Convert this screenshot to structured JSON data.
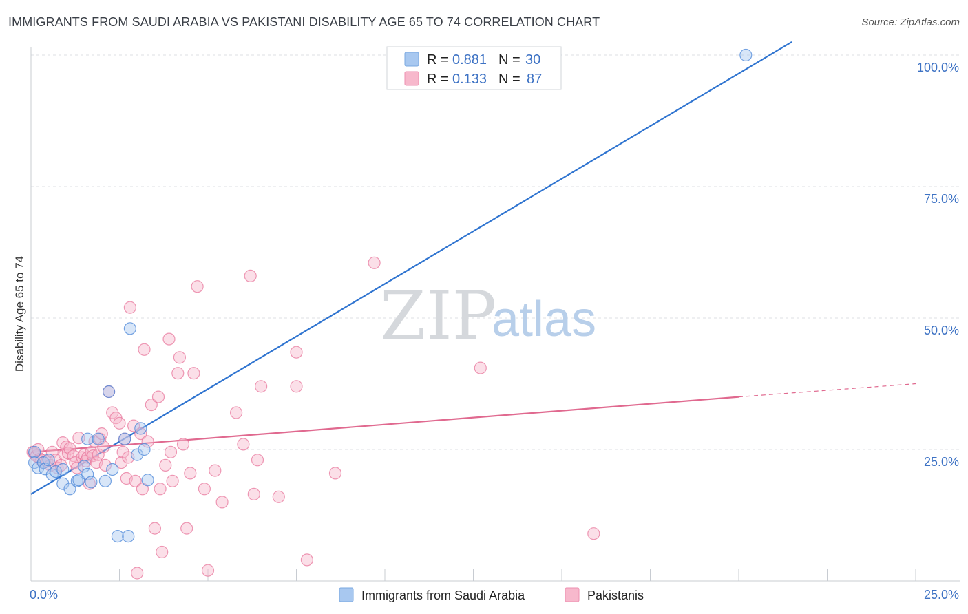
{
  "title": "IMMIGRANTS FROM SAUDI ARABIA VS PAKISTANI DISABILITY AGE 65 TO 74 CORRELATION CHART",
  "source": "Source: ZipAtlas.com",
  "watermark": {
    "zip": "ZIP",
    "atlas": "atlas"
  },
  "legend": {
    "r_label": "R =",
    "n_label": "N =",
    "series": [
      {
        "r": "0.881",
        "n": "30",
        "color": "#a8c8f0"
      },
      {
        "r": "0.133",
        "n": "87",
        "color": "#f7b8cc"
      }
    ]
  },
  "bottom_legend": [
    {
      "label": "Immigrants from Saudi Arabia",
      "color": "#a8c8f0"
    },
    {
      "label": "Pakistanis",
      "color": "#f7b8cc"
    }
  ],
  "chart_data": {
    "type": "scatter",
    "title": "IMMIGRANTS FROM SAUDI ARABIA VS PAKISTANI DISABILITY AGE 65 TO 74 CORRELATION CHART",
    "xlabel": "",
    "ylabel": "Disability Age 65 to 74",
    "xlim": [
      0,
      25
    ],
    "ylim": [
      0,
      100
    ],
    "x_tick_labels": [
      "0.0%",
      "25.0%"
    ],
    "y_tick_labels": [
      "25.0%",
      "50.0%",
      "75.0%",
      "100.0%"
    ],
    "y_ticks": [
      25,
      50,
      75,
      100
    ],
    "grid": true,
    "legend_position": "top-center",
    "series": [
      {
        "name": "Immigrants from Saudi Arabia",
        "color": "#4a86d8",
        "fill": "#a8c8f0",
        "line_color": "#2f74d0",
        "trend": {
          "x0": 0,
          "y0": 16.5,
          "x1": 21.5,
          "y1": 102.5,
          "dashed_to": null
        },
        "points": [
          [
            0.1,
            24.5
          ],
          [
            0.1,
            22.5
          ],
          [
            0.2,
            21.5
          ],
          [
            0.35,
            22.5
          ],
          [
            0.4,
            21.3
          ],
          [
            0.5,
            23.0
          ],
          [
            0.6,
            20.2
          ],
          [
            0.7,
            20.8
          ],
          [
            0.9,
            21.2
          ],
          [
            0.9,
            18.5
          ],
          [
            1.1,
            17.5
          ],
          [
            1.3,
            19.0
          ],
          [
            1.35,
            19.2
          ],
          [
            1.5,
            21.8
          ],
          [
            1.6,
            20.3
          ],
          [
            1.6,
            27.0
          ],
          [
            1.7,
            18.8
          ],
          [
            1.9,
            27.0
          ],
          [
            2.1,
            19.0
          ],
          [
            2.2,
            36.0
          ],
          [
            2.3,
            21.2
          ],
          [
            2.45,
            8.5
          ],
          [
            2.65,
            27.0
          ],
          [
            2.75,
            8.5
          ],
          [
            2.8,
            48.0
          ],
          [
            3.0,
            24.0
          ],
          [
            3.1,
            29.0
          ],
          [
            3.2,
            25.0
          ],
          [
            3.3,
            19.2
          ],
          [
            20.2,
            100.0
          ]
        ]
      },
      {
        "name": "Pakistanis",
        "color": "#e8779c",
        "fill": "#f7b8cc",
        "line_color": "#e0698f",
        "trend": {
          "x0": 0,
          "y0": 24.5,
          "x1": 20.0,
          "y1": 35.0,
          "dashed_to": [
            25.0,
            37.5
          ]
        },
        "points": [
          [
            0.05,
            24.5
          ],
          [
            0.1,
            24.2
          ],
          [
            0.15,
            23.8
          ],
          [
            0.25,
            23.2
          ],
          [
            0.3,
            23.0
          ],
          [
            0.35,
            22.5
          ],
          [
            0.45,
            22.8
          ],
          [
            0.55,
            22.0
          ],
          [
            0.6,
            24.5
          ],
          [
            0.7,
            23.0
          ],
          [
            0.75,
            21.5
          ],
          [
            0.85,
            22.0
          ],
          [
            0.9,
            26.3
          ],
          [
            0.95,
            24.0
          ],
          [
            1.0,
            25.5
          ],
          [
            1.05,
            24.3
          ],
          [
            1.1,
            25.2
          ],
          [
            1.2,
            23.8
          ],
          [
            1.25,
            22.5
          ],
          [
            1.3,
            21.5
          ],
          [
            1.35,
            27.2
          ],
          [
            1.45,
            23.5
          ],
          [
            1.5,
            24.0
          ],
          [
            1.55,
            22.8
          ],
          [
            1.6,
            23.5
          ],
          [
            1.65,
            18.5
          ],
          [
            1.7,
            24.5
          ],
          [
            1.75,
            23.8
          ],
          [
            1.8,
            26.5
          ],
          [
            1.85,
            22.5
          ],
          [
            1.9,
            24.0
          ],
          [
            1.95,
            27.0
          ],
          [
            2.0,
            28.0
          ],
          [
            2.05,
            25.5
          ],
          [
            2.1,
            22.0
          ],
          [
            2.2,
            36.0
          ],
          [
            2.3,
            32.0
          ],
          [
            2.4,
            31.0
          ],
          [
            2.5,
            30.0
          ],
          [
            2.55,
            22.5
          ],
          [
            2.6,
            24.5
          ],
          [
            2.65,
            27.0
          ],
          [
            2.7,
            19.5
          ],
          [
            2.75,
            23.5
          ],
          [
            2.8,
            52.0
          ],
          [
            2.9,
            29.5
          ],
          [
            2.95,
            19.0
          ],
          [
            3.0,
            1.5
          ],
          [
            3.1,
            28.0
          ],
          [
            3.15,
            17.5
          ],
          [
            3.2,
            44.0
          ],
          [
            3.3,
            26.5
          ],
          [
            3.4,
            33.5
          ],
          [
            3.5,
            10.0
          ],
          [
            3.6,
            35.0
          ],
          [
            3.65,
            17.5
          ],
          [
            3.7,
            5.5
          ],
          [
            3.8,
            22.0
          ],
          [
            3.9,
            46.0
          ],
          [
            3.95,
            24.5
          ],
          [
            4.0,
            19.0
          ],
          [
            4.15,
            39.5
          ],
          [
            4.2,
            42.5
          ],
          [
            4.3,
            26.0
          ],
          [
            4.4,
            10.0
          ],
          [
            4.5,
            20.5
          ],
          [
            4.6,
            39.5
          ],
          [
            4.7,
            56.0
          ],
          [
            4.9,
            17.5
          ],
          [
            5.0,
            2.0
          ],
          [
            5.2,
            21.0
          ],
          [
            5.4,
            15.0
          ],
          [
            5.8,
            32.0
          ],
          [
            6.0,
            26.0
          ],
          [
            6.2,
            58.0
          ],
          [
            6.3,
            16.5
          ],
          [
            6.4,
            23.0
          ],
          [
            6.5,
            37.0
          ],
          [
            7.0,
            16.0
          ],
          [
            7.5,
            37.0
          ],
          [
            7.5,
            43.5
          ],
          [
            7.8,
            4.0
          ],
          [
            8.6,
            20.5
          ],
          [
            9.7,
            60.5
          ],
          [
            12.7,
            40.5
          ],
          [
            15.9,
            9.0
          ],
          [
            0.2,
            25.0
          ]
        ]
      }
    ]
  }
}
